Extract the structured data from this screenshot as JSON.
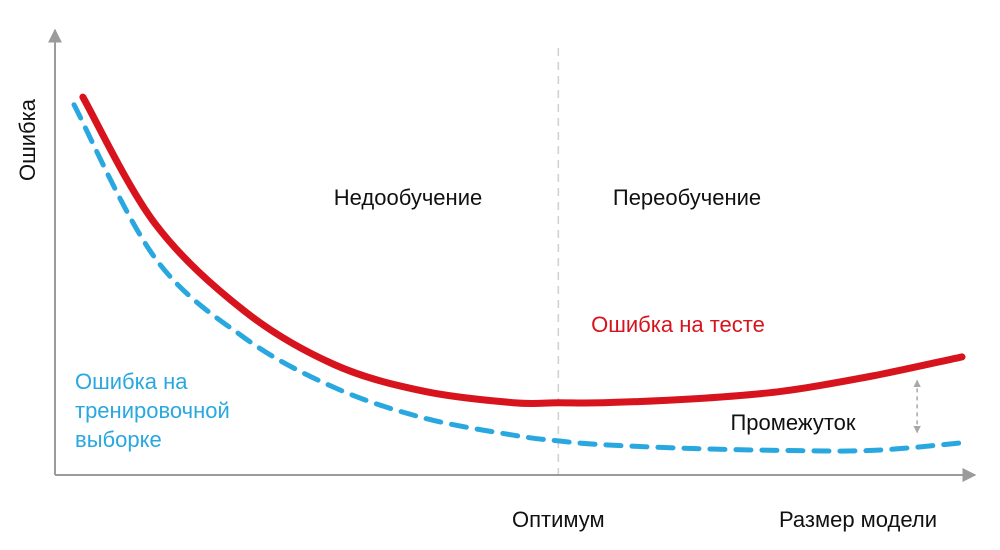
{
  "chart_data": {
    "type": "line",
    "xlabel": "Размер модели",
    "ylabel": "Ошибка",
    "x_ticks": [
      {
        "label": "Оптимум",
        "x": 0.55
      }
    ],
    "xlim": [
      0,
      1
    ],
    "ylim": [
      0,
      1
    ],
    "grid": false,
    "regions": [
      {
        "label": "Недообучение"
      },
      {
        "label": "Переобучение"
      }
    ],
    "series": [
      {
        "name": "Ошибка на тесте",
        "color": "#d7141d",
        "style": "solid",
        "x": [
          0.02,
          0.1,
          0.2,
          0.3,
          0.4,
          0.5,
          0.55,
          0.6,
          0.7,
          0.8,
          0.9,
          1.0
        ],
        "y": [
          0.95,
          0.62,
          0.39,
          0.25,
          0.18,
          0.15,
          0.15,
          0.15,
          0.16,
          0.18,
          0.22,
          0.27
        ]
      },
      {
        "name": "Ошибка на тренировочной выборке",
        "color": "#29a8e0",
        "style": "dashed",
        "x": [
          0.01,
          0.1,
          0.2,
          0.3,
          0.4,
          0.5,
          0.55,
          0.6,
          0.7,
          0.8,
          0.9,
          1.0
        ],
        "y": [
          0.93,
          0.53,
          0.32,
          0.19,
          0.11,
          0.065,
          0.05,
          0.04,
          0.03,
          0.025,
          0.025,
          0.045
        ]
      }
    ],
    "annotations": [
      {
        "text": "Промежуток",
        "between_series_at_x": 0.95
      }
    ],
    "label_lines": {
      "train": [
        "Ошибка на",
        "тренировочной",
        "выборке"
      ]
    }
  }
}
